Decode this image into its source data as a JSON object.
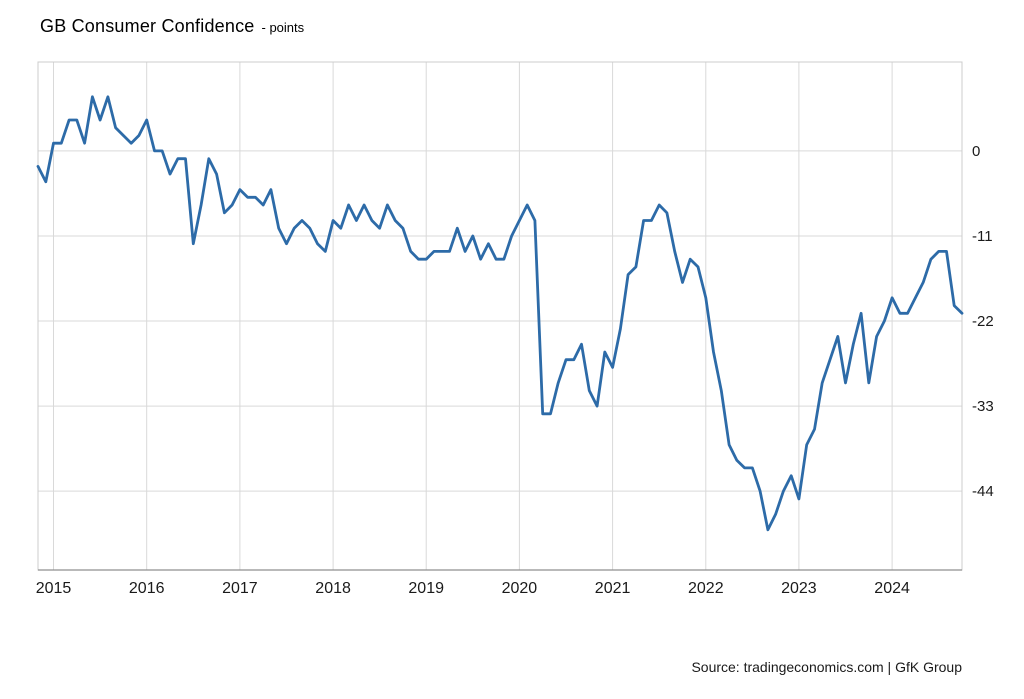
{
  "title": {
    "main": "GB Consumer Confidence",
    "unit": "- points"
  },
  "footer": {
    "source": "Source: tradingeconomics.com | GfK Group"
  },
  "colors": {
    "line": "#2d6ba8",
    "grid": "#d9d9d9",
    "border": "#cccccc",
    "axis": "#8f8f8f",
    "tick_text": "#1a1a1a",
    "background": "#ffffff"
  },
  "chart_data": {
    "type": "line",
    "title": "GB Consumer Confidence",
    "xlabel": "",
    "ylabel": "points",
    "legend": "none",
    "grid": true,
    "y_ticks": [
      0,
      -11,
      -22,
      -33,
      -44
    ],
    "ylim": [
      -54.2,
      11.5
    ],
    "x_tick_labels": [
      "2015",
      "2016",
      "2017",
      "2018",
      "2019",
      "2020",
      "2021",
      "2022",
      "2023",
      "2024"
    ],
    "series": [
      {
        "name": "GB Consumer Confidence",
        "color": "#2d6ba8",
        "frequency": "monthly",
        "start": "2014-11",
        "end": "2024-10",
        "values": [
          -2,
          -4,
          1,
          1,
          4,
          4,
          1,
          7,
          4,
          7,
          3,
          2,
          1,
          2,
          4,
          0,
          0,
          -3,
          -1,
          -1,
          -12,
          -7,
          -1,
          -3,
          -8,
          -7,
          -5,
          -6,
          -6,
          -7,
          -5,
          -10,
          -12,
          -10,
          -9,
          -10,
          -12,
          -13,
          -9,
          -10,
          -7,
          -9,
          -7,
          -9,
          -10,
          -7,
          -9,
          -10,
          -13,
          -14,
          -14,
          -13,
          -13,
          -13,
          -10,
          -13,
          -11,
          -14,
          -12,
          -14,
          -14,
          -11,
          -9,
          -7,
          -9,
          -34,
          -34,
          -30,
          -27,
          -27,
          -25,
          -31,
          -33,
          -26,
          -28,
          -23,
          -16,
          -15,
          -9,
          -9,
          -7,
          -8,
          -13,
          -17,
          -14,
          -15,
          -19,
          -26,
          -31,
          -38,
          -40,
          -41,
          -41,
          -44,
          -49,
          -47,
          -44,
          -42,
          -45,
          -38,
          -36,
          -30,
          -27,
          -24,
          -30,
          -25,
          -21,
          -30,
          -24,
          -22,
          -19,
          -21,
          -21,
          -19,
          -17,
          -14,
          -13,
          -13,
          -20,
          -21
        ]
      }
    ]
  }
}
